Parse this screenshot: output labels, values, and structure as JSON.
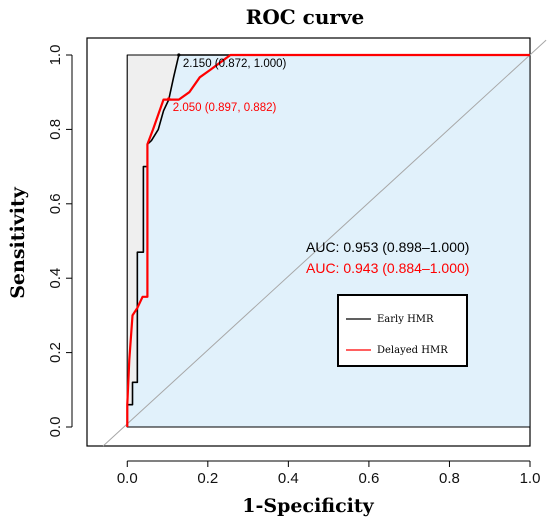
{
  "chart_data": {
    "type": "line",
    "title": "ROC curve",
    "xlabel": "1-Specificity",
    "ylabel": "Sensitivity",
    "xlim": [
      -0.1,
      1.0
    ],
    "ylim": [
      0.0,
      1.0
    ],
    "x_ticks": [
      "0.0",
      "0.2",
      "0.4",
      "0.6",
      "0.8",
      "1.0"
    ],
    "y_ticks": [
      "0.0",
      "0.2",
      "0.4",
      "0.6",
      "0.8",
      "1.0"
    ],
    "x_tick_values": [
      0,
      0.2,
      0.4,
      0.6,
      0.8,
      1.0
    ],
    "y_tick_values": [
      0,
      0.2,
      0.4,
      0.6,
      0.8,
      1.0
    ],
    "x_reversed_specificity": true,
    "colors": {
      "early": "#000000",
      "delayed": "#ff0000",
      "ci_fill": "#e1f1fb",
      "early_fill": "#efefef",
      "diagonal": "#a7a7a7"
    },
    "series": [
      {
        "name": "Early HMR",
        "color": "#000000",
        "x": [
          0,
          0,
          0.013,
          0.013,
          0.025,
          0.025,
          0.04,
          0.04,
          0.05,
          0.05,
          0.06,
          0.077,
          0.09,
          0.103,
          0.115,
          0.128,
          0.2,
          0.3,
          1.0
        ],
        "y": [
          0.0,
          0.06,
          0.06,
          0.12,
          0.12,
          0.47,
          0.47,
          0.7,
          0.7,
          0.76,
          0.77,
          0.8,
          0.85,
          0.88,
          0.94,
          1.0,
          1.0,
          1.0,
          1.0
        ]
      },
      {
        "name": "Delayed HMR",
        "color": "#ff0000",
        "x": [
          0,
          0,
          0.005,
          0.013,
          0.025,
          0.038,
          0.05,
          0.05,
          0.064,
          0.077,
          0.09,
          0.103,
          0.128,
          0.154,
          0.18,
          0.206,
          0.231,
          0.256,
          1.0
        ],
        "y": [
          0.0,
          0.06,
          0.18,
          0.3,
          0.32,
          0.35,
          0.35,
          0.76,
          0.8,
          0.84,
          0.88,
          0.88,
          0.88,
          0.9,
          0.94,
          0.96,
          0.98,
          1.0,
          1.0
        ]
      }
    ],
    "annotations": [
      {
        "text": "2.150 (0.872, 1.000)",
        "x": 0.128,
        "y": 1.0,
        "color": "#000000"
      },
      {
        "text": "2.050 (0.897, 0.882)",
        "x": 0.103,
        "y": 0.882,
        "color": "#ff0000"
      }
    ],
    "auc_labels": [
      {
        "text": "AUC: 0.953 (0.898–1.000)",
        "color": "#000000"
      },
      {
        "text": "AUC: 0.943 (0.884–1.000)",
        "color": "#ff0000"
      }
    ],
    "legend": {
      "placement": "center-right",
      "entries": [
        "Early HMR",
        "Delayed HMR"
      ]
    },
    "grid": false
  }
}
